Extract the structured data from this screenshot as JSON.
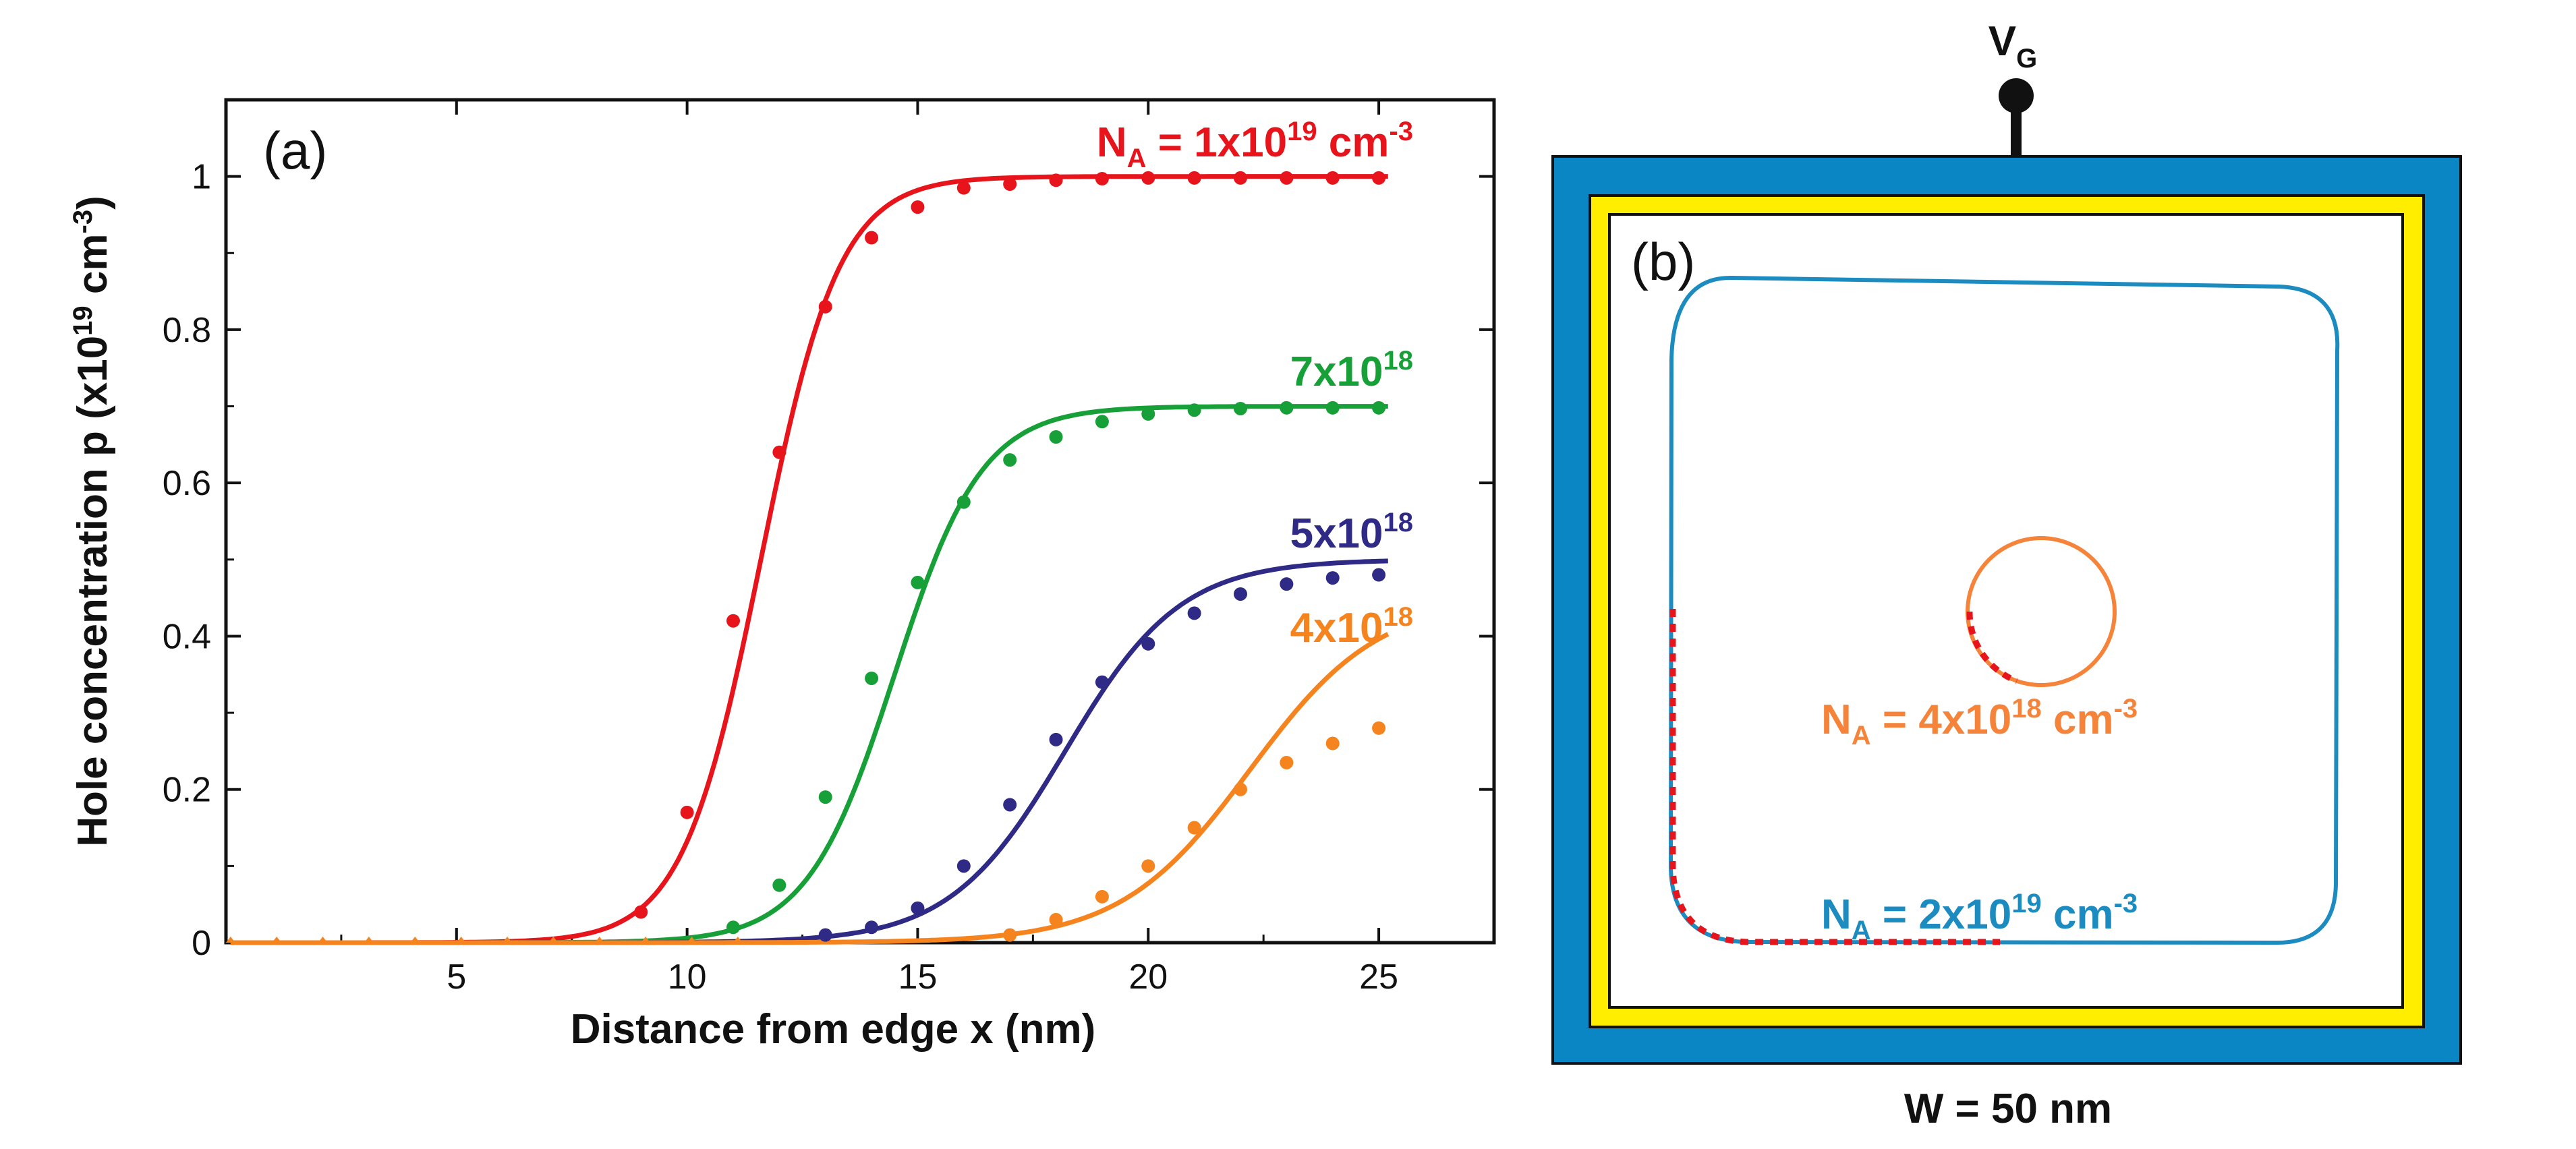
{
  "chart_data": [
    {
      "type": "line",
      "panel_label": "(a)",
      "xlabel": "Distance from edge x (nm)",
      "ylabel": {
        "main": "Hole concentration p (x10",
        "exp1": "19",
        "unit": " cm",
        "exp2": "-3",
        "close": ")"
      },
      "xlim": [
        0,
        27.5
      ],
      "ylim": [
        0,
        1.1
      ],
      "xticks": [
        5,
        10,
        15,
        20,
        25
      ],
      "xtick_labels": [
        "5",
        "10",
        "15",
        "20",
        "25"
      ],
      "yticks": [
        0,
        0.2,
        0.4,
        0.6,
        0.8,
        1
      ],
      "ytick_labels": [
        "0",
        "0.2",
        "0.4",
        "0.6",
        "0.8",
        "1"
      ],
      "marker_x": [
        0,
        1,
        2,
        3,
        4,
        5,
        6,
        7,
        8,
        9,
        10,
        11
      ],
      "series": [
        {
          "name": "NA = 1x10^19 cm^-3",
          "label_parts": {
            "base": "N",
            "sub": "A",
            "mid": " = 1x10",
            "sup": "19",
            "unit": " cm",
            "sup2": "-3"
          },
          "color": "#e8141b",
          "line": {
            "plateau": 1.0,
            "x0": 11.6,
            "w": 0.85
          },
          "points": {
            "x": [
              9,
              10,
              11,
              12,
              13,
              14,
              15,
              16,
              17,
              18,
              19,
              20,
              21,
              22,
              23,
              24,
              25
            ],
            "y": [
              0.04,
              0.17,
              0.42,
              0.64,
              0.83,
              0.92,
              0.96,
              0.985,
              0.99,
              0.995,
              0.997,
              0.998,
              0.998,
              0.998,
              0.998,
              0.998,
              0.998
            ]
          }
        },
        {
          "name": "7x10^18",
          "label_parts": {
            "base": "7x10",
            "sup": "18"
          },
          "color": "#16a037",
          "line": {
            "plateau": 0.7,
            "x0": 14.5,
            "w": 0.95
          },
          "points": {
            "x": [
              11,
              12,
              13,
              14,
              15,
              16,
              17,
              18,
              19,
              20,
              21,
              22,
              23,
              24,
              25
            ],
            "y": [
              0.02,
              0.075,
              0.19,
              0.345,
              0.47,
              0.575,
              0.63,
              0.66,
              0.68,
              0.69,
              0.695,
              0.697,
              0.698,
              0.698,
              0.698
            ]
          }
        },
        {
          "name": "5x10^18",
          "label_parts": {
            "base": "5x10",
            "sup": "18"
          },
          "color": "#2e2a86",
          "line": {
            "plateau": 0.5,
            "x0": 18.2,
            "w": 1.25
          },
          "points": {
            "x": [
              13,
              14,
              15,
              16,
              17,
              18,
              19,
              20,
              21,
              22,
              23,
              24,
              25
            ],
            "y": [
              0.01,
              0.02,
              0.045,
              0.1,
              0.18,
              0.265,
              0.34,
              0.39,
              0.43,
              0.455,
              0.468,
              0.476,
              0.48
            ]
          }
        },
        {
          "name": "4x10^18",
          "label_parts": {
            "base": "4x10",
            "sup": "18"
          },
          "color": "#f5841f",
          "line": {
            "plateau": 0.45,
            "x0": 22.2,
            "w": 1.4
          },
          "points": {
            "x": [
              17,
              18,
              19,
              20,
              21,
              22,
              23,
              24,
              25
            ],
            "y": [
              0.01,
              0.03,
              0.06,
              0.1,
              0.15,
              0.2,
              0.235,
              0.26,
              0.28
            ]
          }
        }
      ]
    },
    {
      "type": "diagram",
      "panel_label": "(b)",
      "gate": {
        "base": "V",
        "sub": "G"
      },
      "width_label": "W = 50 nm",
      "outer_color": "#0b86c4",
      "gate_color": "#ffee00",
      "inner_color": "#ffffff",
      "contour_large": {
        "color": "#1b8bc0",
        "label_parts": {
          "base": "N",
          "sub": "A",
          "mid": " = 2x10",
          "sup": "19",
          "unit": " cm",
          "sup2": "-3"
        }
      },
      "contour_small": {
        "color": "#f5843a",
        "label_parts": {
          "base": "N",
          "sub": "A",
          "mid": " = 4x10",
          "sup": "18",
          "unit": " cm",
          "sup2": "-3"
        }
      },
      "dotted_color": "#e8141b"
    }
  ]
}
